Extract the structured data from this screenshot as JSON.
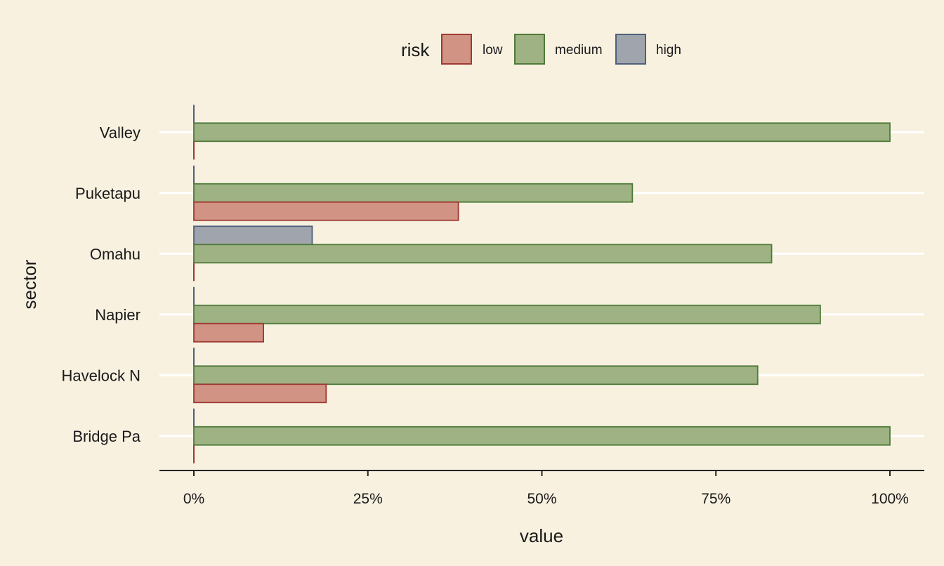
{
  "chart_data": {
    "type": "bar",
    "orientation": "horizontal",
    "grouping": "dodge",
    "xlabel": "value",
    "ylabel": "sector",
    "xlim": [
      0,
      1
    ],
    "x_ticks": [
      0,
      0.25,
      0.5,
      0.75,
      1
    ],
    "x_tick_labels": [
      "0%",
      "25%",
      "50%",
      "75%",
      "100%"
    ],
    "categories": [
      "Valley",
      "Puketapu",
      "Omahu",
      "Napier",
      "Havelock N",
      "Bridge Pa"
    ],
    "legend": {
      "title": "risk",
      "position": "top"
    },
    "grid": "horizontal-major",
    "series": [
      {
        "name": "low",
        "color": "#d09384",
        "border": "#a03a32",
        "values": [
          0,
          0.38,
          0,
          0.1,
          0.19,
          0
        ]
      },
      {
        "name": "medium",
        "color": "#9fb283",
        "border": "#4e7a3a",
        "values": [
          1.0,
          0.63,
          0.83,
          0.9,
          0.81,
          1.0
        ]
      },
      {
        "name": "high",
        "color": "#a0a5ad",
        "border": "#4f5f7c",
        "values": [
          0,
          0,
          0.17,
          0,
          0,
          0
        ]
      }
    ]
  }
}
